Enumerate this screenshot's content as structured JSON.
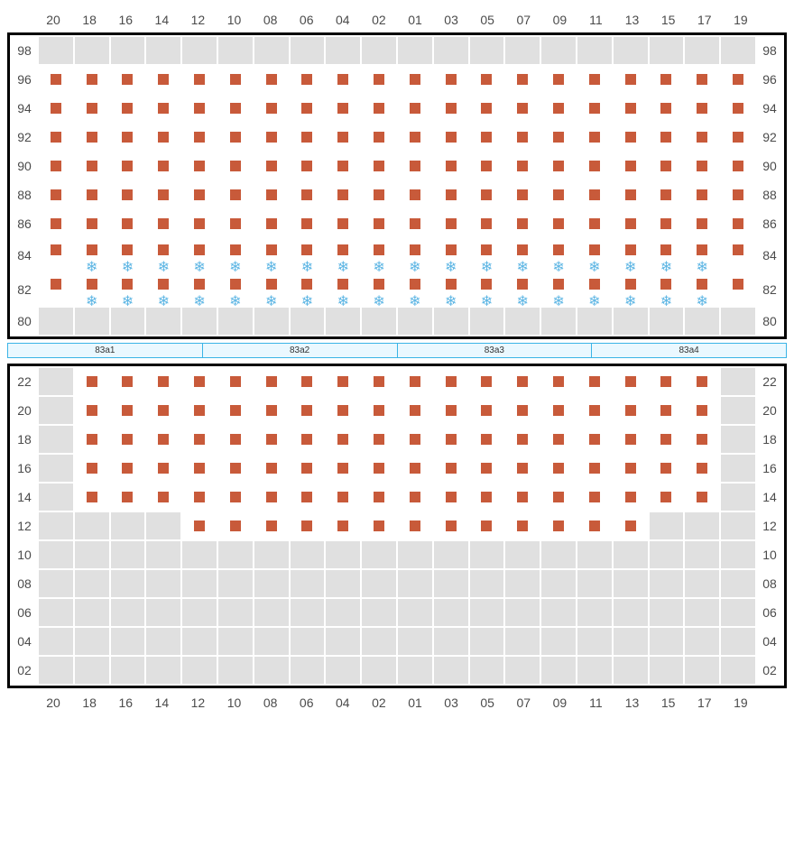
{
  "colors": {
    "cell_unpopulated_bg": "#e0e0e0",
    "cell_populated_bg": "#ffffff",
    "cell_border": "#ffffff",
    "frame_border": "#000000",
    "dot_fill": "#c85a3a",
    "cold_color": "#5eb6e4",
    "label_color": "#4b4b4b",
    "segment_border": "#3bb4e6",
    "segment_bg": "#eaf8ff"
  },
  "columns": [
    "20",
    "18",
    "16",
    "14",
    "12",
    "10",
    "08",
    "06",
    "04",
    "02",
    "01",
    "03",
    "05",
    "07",
    "09",
    "11",
    "13",
    "15",
    "17",
    "19"
  ],
  "upper": {
    "rows": [
      "98",
      "96",
      "94",
      "92",
      "90",
      "88",
      "86",
      "84",
      "82",
      "80"
    ],
    "cold_rows": [
      "84",
      "82"
    ],
    "cold_skip_first_last": true,
    "populated": {
      "98": [],
      "96": [
        "20",
        "18",
        "16",
        "14",
        "12",
        "10",
        "08",
        "06",
        "04",
        "02",
        "01",
        "03",
        "05",
        "07",
        "09",
        "11",
        "13",
        "15",
        "17",
        "19"
      ],
      "94": [
        "20",
        "18",
        "16",
        "14",
        "12",
        "10",
        "08",
        "06",
        "04",
        "02",
        "01",
        "03",
        "05",
        "07",
        "09",
        "11",
        "13",
        "15",
        "17",
        "19"
      ],
      "92": [
        "20",
        "18",
        "16",
        "14",
        "12",
        "10",
        "08",
        "06",
        "04",
        "02",
        "01",
        "03",
        "05",
        "07",
        "09",
        "11",
        "13",
        "15",
        "17",
        "19"
      ],
      "90": [
        "20",
        "18",
        "16",
        "14",
        "12",
        "10",
        "08",
        "06",
        "04",
        "02",
        "01",
        "03",
        "05",
        "07",
        "09",
        "11",
        "13",
        "15",
        "17",
        "19"
      ],
      "88": [
        "20",
        "18",
        "16",
        "14",
        "12",
        "10",
        "08",
        "06",
        "04",
        "02",
        "01",
        "03",
        "05",
        "07",
        "09",
        "11",
        "13",
        "15",
        "17",
        "19"
      ],
      "86": [
        "20",
        "18",
        "16",
        "14",
        "12",
        "10",
        "08",
        "06",
        "04",
        "02",
        "01",
        "03",
        "05",
        "07",
        "09",
        "11",
        "13",
        "15",
        "17",
        "19"
      ],
      "84": [
        "20",
        "18",
        "16",
        "14",
        "12",
        "10",
        "08",
        "06",
        "04",
        "02",
        "01",
        "03",
        "05",
        "07",
        "09",
        "11",
        "13",
        "15",
        "17",
        "19"
      ],
      "82": [
        "20",
        "18",
        "16",
        "14",
        "12",
        "10",
        "08",
        "06",
        "04",
        "02",
        "01",
        "03",
        "05",
        "07",
        "09",
        "11",
        "13",
        "15",
        "17",
        "19"
      ],
      "80": []
    }
  },
  "segments": [
    "83a1",
    "83a2",
    "83a3",
    "83a4"
  ],
  "lower": {
    "rows": [
      "22",
      "20",
      "18",
      "16",
      "14",
      "12",
      "10",
      "08",
      "06",
      "04",
      "02"
    ],
    "populated": {
      "22": [
        "18",
        "16",
        "14",
        "12",
        "10",
        "08",
        "06",
        "04",
        "02",
        "01",
        "03",
        "05",
        "07",
        "09",
        "11",
        "13",
        "15",
        "17"
      ],
      "20": [
        "18",
        "16",
        "14",
        "12",
        "10",
        "08",
        "06",
        "04",
        "02",
        "01",
        "03",
        "05",
        "07",
        "09",
        "11",
        "13",
        "15",
        "17"
      ],
      "18": [
        "18",
        "16",
        "14",
        "12",
        "10",
        "08",
        "06",
        "04",
        "02",
        "01",
        "03",
        "05",
        "07",
        "09",
        "11",
        "13",
        "15",
        "17"
      ],
      "16": [
        "18",
        "16",
        "14",
        "12",
        "10",
        "08",
        "06",
        "04",
        "02",
        "01",
        "03",
        "05",
        "07",
        "09",
        "11",
        "13",
        "15",
        "17"
      ],
      "14": [
        "18",
        "16",
        "14",
        "12",
        "10",
        "08",
        "06",
        "04",
        "02",
        "01",
        "03",
        "05",
        "07",
        "09",
        "11",
        "13",
        "15",
        "17"
      ],
      "12": [
        "12",
        "10",
        "08",
        "06",
        "04",
        "02",
        "01",
        "03",
        "05",
        "07",
        "09",
        "11",
        "13"
      ],
      "10": [],
      "08": [],
      "06": [],
      "04": [],
      "02": []
    }
  },
  "cold_glyph": "❄"
}
